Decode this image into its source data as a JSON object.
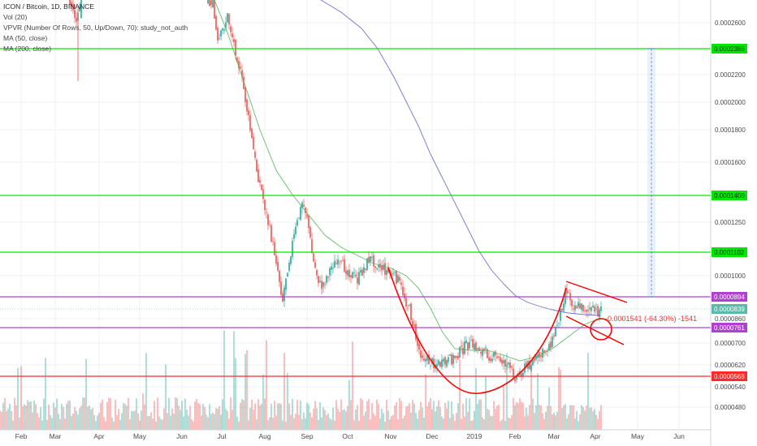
{
  "chart_data": {
    "type": "candlestick",
    "title": "ICON / Bitcoin, 1D, BINANCE",
    "indicators": [
      "Vol (20)",
      "VPVR (Number Of Rows, 50, Up/Down, 70): study_not_auth",
      "MA (50, close)",
      "MA (200, close)"
    ],
    "x_ticks": [
      "Feb",
      "Mar",
      "Apr",
      "May",
      "Jun",
      "Jul",
      "Aug",
      "Sep",
      "Oct",
      "Nov",
      "Dec",
      "2019",
      "Feb",
      "Mar",
      "Apr",
      "May",
      "Jun"
    ],
    "y_ticks": [
      "0.0002600",
      "0.0002200",
      "0.0002000",
      "0.0001800",
      "0.0001600",
      "0.0001250",
      "0.0001000",
      "0.0000860",
      "0.0000700",
      "0.0000620",
      "0.0000540",
      "0.0000480"
    ],
    "ylim": [
      4.4e-05,
      0.00028
    ],
    "horizontal_levels": [
      {
        "label": "0.0002386",
        "color": "#00e600"
      },
      {
        "label": "0.0001400",
        "color": "#00e600"
      },
      {
        "label": "0.0001102",
        "color": "#00e600"
      },
      {
        "label": "0.0000894",
        "color": "#b040d0"
      },
      {
        "label": "0.0000761",
        "color": "#b040d0"
      },
      {
        "label": "0.0000568",
        "color": "#ff2a2a"
      }
    ],
    "current_price_label": "0.0000839",
    "measure_annotation": "-0.0001541 (-64.30%) -1541",
    "colors": {
      "up": "#26a69a",
      "down": "#ef5350",
      "ma50": "#4caf50",
      "ma200": "#5c5cc8",
      "pattern": "#ff0000",
      "current_price_bg": "#5cb8a8",
      "grid": "#eef0f3"
    }
  }
}
